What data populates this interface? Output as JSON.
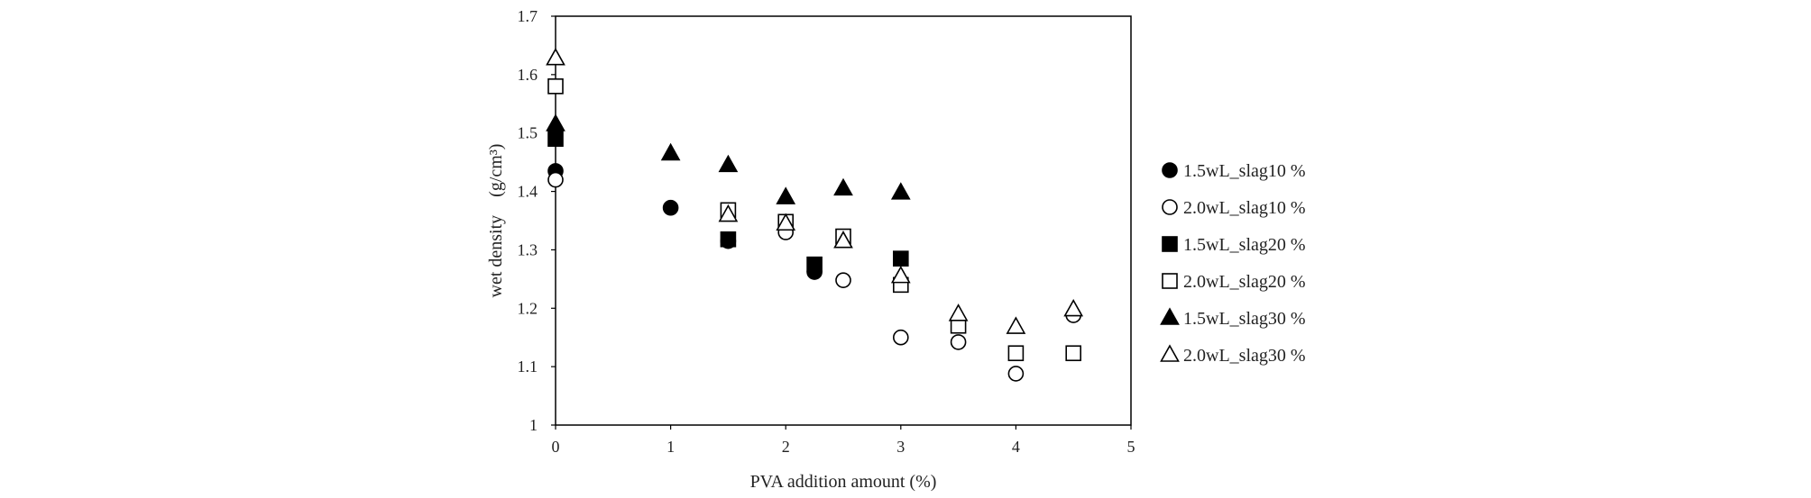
{
  "chart_data": {
    "type": "scatter",
    "title": "",
    "xlabel": "PVA addition amount (%)",
    "ylabel": "wet density　(g/cm³)",
    "xlim": [
      0,
      5
    ],
    "ylim": [
      1,
      1.7
    ],
    "x_ticks": [
      "0",
      "1",
      "2",
      "3",
      "4",
      "5"
    ],
    "y_ticks": [
      "1",
      "1.1",
      "1.2",
      "1.3",
      "1.4",
      "1.5",
      "1.6",
      "1.7"
    ],
    "grid": false,
    "legend_position": "right",
    "series": [
      {
        "name": "1.5wL_slag10 %",
        "marker": "circle",
        "filled": true,
        "x": [
          0,
          1,
          1.5,
          2.25
        ],
        "y": [
          1.435,
          1.372,
          1.315,
          1.262
        ]
      },
      {
        "name": "2.0wL_slag10 %",
        "marker": "circle",
        "filled": false,
        "x": [
          0,
          2,
          2.5,
          3,
          3.5,
          4,
          4.5
        ],
        "y": [
          1.42,
          1.33,
          1.248,
          1.15,
          1.142,
          1.088,
          1.188
        ]
      },
      {
        "name": "1.5wL_slag20 %",
        "marker": "square",
        "filled": true,
        "x": [
          0,
          1.5,
          2.25,
          3
        ],
        "y": [
          1.49,
          1.318,
          1.275,
          1.285
        ]
      },
      {
        "name": "2.0wL_slag20 %",
        "marker": "square",
        "filled": false,
        "x": [
          0,
          1.5,
          2,
          2.5,
          3,
          3.5,
          4,
          4.5
        ],
        "y": [
          1.58,
          1.368,
          1.348,
          1.323,
          1.24,
          1.17,
          1.123,
          1.123
        ]
      },
      {
        "name": "1.5wL_slag30 %",
        "marker": "triangle",
        "filled": true,
        "x": [
          0,
          1,
          1.5,
          2,
          2.5,
          3
        ],
        "y": [
          1.515,
          1.465,
          1.445,
          1.39,
          1.405,
          1.398
        ]
      },
      {
        "name": "2.0wL_slag30 %",
        "marker": "triangle",
        "filled": false,
        "x": [
          0,
          1.5,
          2,
          2.5,
          3,
          3.5,
          4,
          4.5
        ],
        "y": [
          1.628,
          1.36,
          1.345,
          1.315,
          1.255,
          1.19,
          1.168,
          1.198
        ]
      }
    ]
  }
}
